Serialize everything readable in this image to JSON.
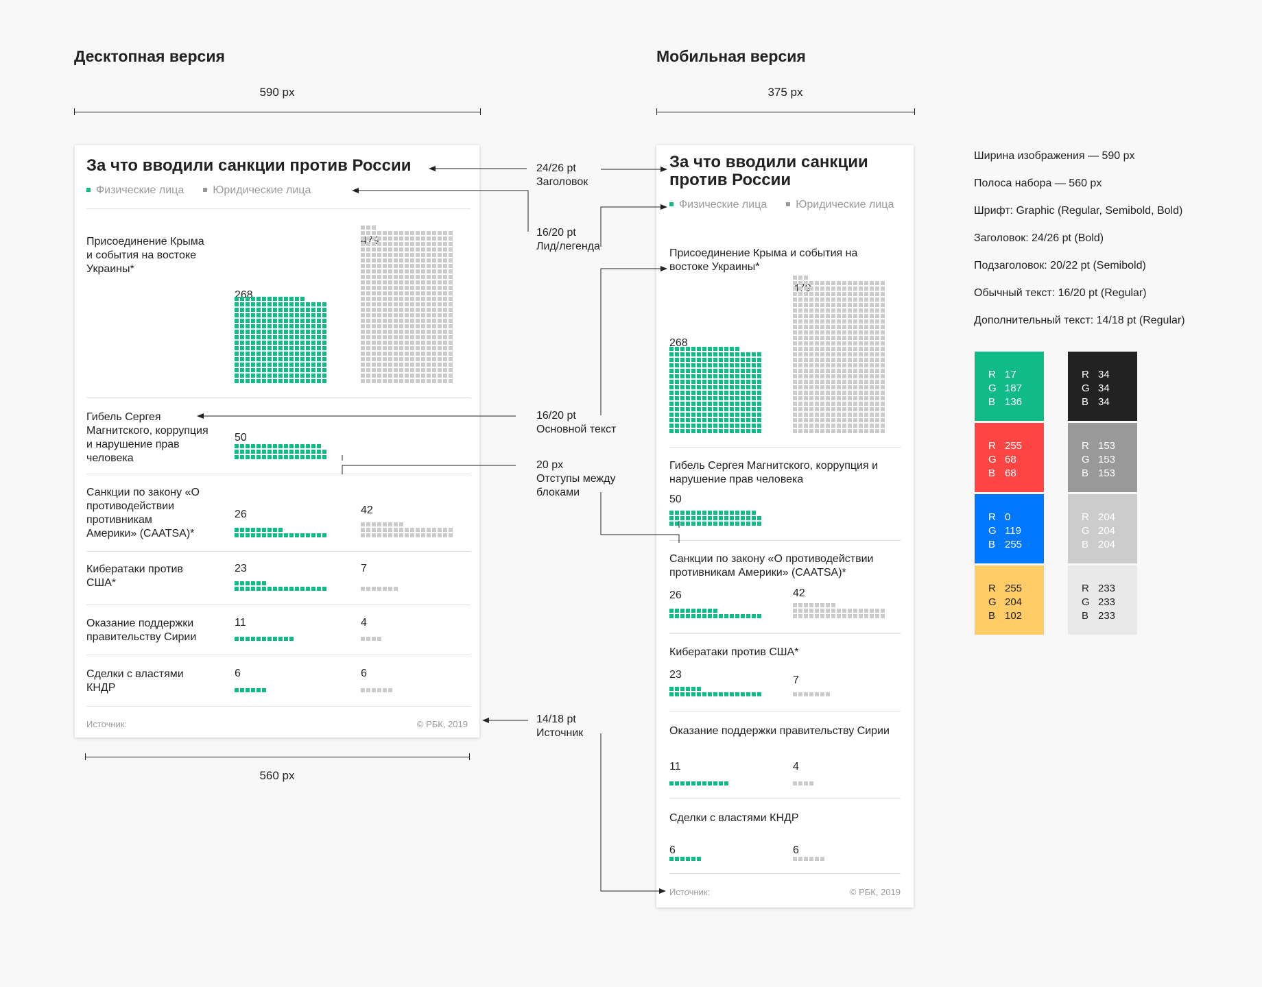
{
  "headings": {
    "desktop": "Десктопная версия",
    "mobile": "Мобильная версия"
  },
  "dims": {
    "desktop_top": "590 px",
    "mobile_top": "375 px",
    "desktop_bottom": "560 px"
  },
  "chart": {
    "title": "За что вводили санкции против России",
    "legend": [
      {
        "label": "Физические лица",
        "color": "#11BB88"
      },
      {
        "label": "Юридические лица",
        "color": "#999999"
      }
    ],
    "empty_color": "#cccccc",
    "rows": [
      {
        "label": "Присоединение Крыма и события на востоке Украины*",
        "a": 268,
        "b": 479
      },
      {
        "label": "Гибель Сергея Магнитского, коррупция и нарушение прав человека",
        "a": 50,
        "b": null
      },
      {
        "label": "Санкции по закону «О противодействии противникам Америки» (CAATSA)*",
        "a": 26,
        "b": 42
      },
      {
        "label": "Кибератаки против США*",
        "a": 23,
        "b": 7
      },
      {
        "label": "Оказание поддержки правительству Сирии",
        "a": 11,
        "b": 4
      },
      {
        "label": "Сделки с властями КНДР",
        "a": 6,
        "b": 6
      }
    ],
    "source": "Источник:",
    "copyright": "© РБК, 2019"
  },
  "annotations": [
    {
      "size": "24/26 pt",
      "name": "Заголовок"
    },
    {
      "size": "16/20 pt",
      "name": "Лид/легенда"
    },
    {
      "size": "16/20 pt",
      "name": "Основной текст"
    },
    {
      "size": "20 px",
      "name": "Отступы между блоками"
    },
    {
      "size": "14/18 pt",
      "name": "Источник"
    }
  ],
  "specs": [
    "Ширина изображения — 590 px",
    "Полоса набора — 560 px",
    "Шрифт: Graphic (Regular, Semibold, Bold)",
    "Заголовок: 24/26 pt (Bold)",
    "Подзаголовок: 20/22 pt  (Semibold)",
    "Обычный текст: 16/20 pt (Regular)",
    "Дополнительный текст: 14/18 pt (Regular)"
  ],
  "palette": [
    {
      "hex": "#11BB88",
      "r": "17",
      "g": "187",
      "b": "136",
      "text": "#ffffff"
    },
    {
      "hex": "#FF4444",
      "r": "255",
      "g": "68",
      "b": "68",
      "text": "#ffffff"
    },
    {
      "hex": "#0077FF",
      "r": "0",
      "g": "119",
      "b": "255",
      "text": "#ffffff"
    },
    {
      "hex": "#FFCC66",
      "r": "255",
      "g": "204",
      "b": "102",
      "text": "#222222"
    },
    {
      "hex": "#222222",
      "r": "34",
      "g": "34",
      "b": "34",
      "text": "#ffffff"
    },
    {
      "hex": "#999999",
      "r": "153",
      "g": "153",
      "b": "153",
      "text": "#ffffff"
    },
    {
      "hex": "#CCCCCC",
      "r": "204",
      "g": "204",
      "b": "204",
      "text": "#ffffff"
    },
    {
      "hex": "#E9E9E9",
      "r": "233",
      "g": "233",
      "b": "233",
      "text": "#222222"
    }
  ]
}
